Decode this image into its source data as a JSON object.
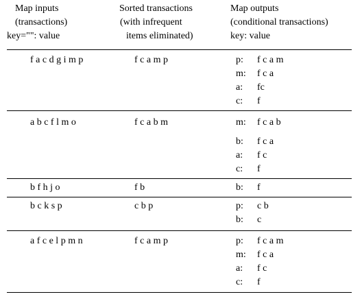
{
  "header": {
    "inputs": [
      "Map inputs",
      "(transactions)",
      "key=\"\": value"
    ],
    "sorted": [
      "Sorted transactions",
      "(with infrequent",
      "items eliminated)"
    ],
    "outputs": [
      "Map outputs",
      "(conditional transactions)",
      "key: value"
    ]
  },
  "rows": [
    {
      "input": "f a c d g i m p",
      "sorted": "f c a m p",
      "outputs": [
        {
          "key": "p:",
          "value": "f c a m"
        },
        {
          "key": "m:",
          "value": "f c a"
        },
        {
          "key": "a:",
          "value": "fc"
        },
        {
          "key": "c:",
          "value": "f"
        }
      ]
    },
    {
      "input": "a b c f l m o",
      "sorted": "f c a b m",
      "outputs": [
        {
          "key": "m:",
          "value": "f c a b"
        },
        {
          "key": "b:",
          "value": "f c a"
        },
        {
          "key": "a:",
          "value": "f c"
        },
        {
          "key": "c:",
          "value": "f"
        }
      ]
    },
    {
      "input": "b f h j o",
      "sorted": "f b",
      "outputs": [
        {
          "key": "b:",
          "value": "f"
        }
      ]
    },
    {
      "input": "b c k s p",
      "sorted": "c b p",
      "outputs": [
        {
          "key": "p:",
          "value": "c b"
        },
        {
          "key": "b:",
          "value": "c"
        }
      ]
    },
    {
      "input": "a f c e l p m n",
      "sorted": "f c a m p",
      "outputs": [
        {
          "key": "p:",
          "value": "f c a m"
        },
        {
          "key": "m:",
          "value": "f c a"
        },
        {
          "key": "a:",
          "value": "f c"
        },
        {
          "key": "c:",
          "value": "f"
        }
      ]
    }
  ]
}
